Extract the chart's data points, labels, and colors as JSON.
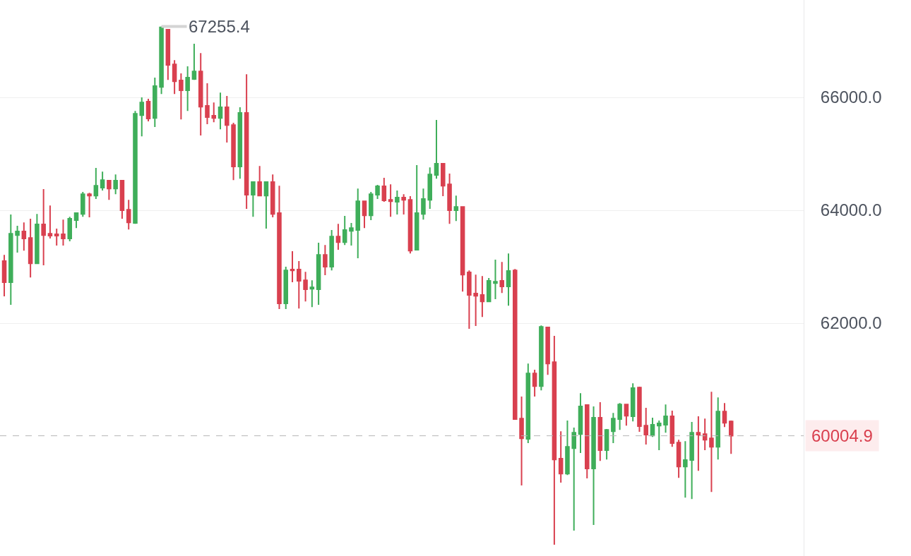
{
  "chart_data": {
    "type": "candlestick",
    "categories": [
      null,
      null,
      null,
      null,
      null,
      null,
      null,
      null,
      null,
      null,
      null,
      null,
      null,
      null,
      null,
      null,
      null,
      null,
      null,
      null,
      null,
      null,
      null,
      null,
      null,
      null,
      null,
      null,
      null,
      null,
      null,
      null,
      null,
      null,
      null,
      null,
      null,
      null,
      null,
      null,
      null,
      null,
      null,
      null,
      null,
      null,
      null,
      null,
      null,
      null,
      null,
      null,
      null,
      null,
      null,
      null,
      null,
      null,
      null,
      null,
      null,
      null,
      null,
      null,
      null,
      null,
      null,
      null,
      null,
      null,
      null,
      null,
      null,
      null,
      null,
      null,
      null,
      null,
      null,
      null,
      null,
      null,
      null,
      null,
      null,
      null,
      null,
      null,
      null,
      null,
      null,
      null,
      null,
      null,
      null,
      null,
      null,
      null,
      null,
      null,
      null,
      null,
      null,
      null,
      null,
      null,
      null,
      null,
      null,
      null,
      null,
      null
    ],
    "ohlc": [
      [
        63100,
        63210,
        62475,
        62725
      ],
      [
        62725,
        63925,
        62325,
        63585
      ],
      [
        63560,
        63725,
        63250,
        63625
      ],
      [
        63625,
        63785,
        63285,
        63500
      ],
      [
        63510,
        63850,
        62810,
        63060
      ],
      [
        63060,
        63935,
        63060,
        63750
      ],
      [
        63750,
        64375,
        63025,
        63560
      ],
      [
        63585,
        64085,
        63500,
        63550
      ],
      [
        63575,
        63675,
        63375,
        63550
      ],
      [
        63575,
        63835,
        63375,
        63500
      ],
      [
        63500,
        63885,
        63450,
        63850
      ],
      [
        63825,
        63960,
        63685,
        63950
      ],
      [
        63935,
        64325,
        63885,
        64285
      ],
      [
        64285,
        64310,
        63875,
        64260
      ],
      [
        64260,
        64750,
        64200,
        64435
      ],
      [
        64400,
        64685,
        64350,
        64535
      ],
      [
        64525,
        64535,
        64185,
        64385
      ],
      [
        64385,
        64635,
        64285,
        64525
      ],
      [
        64525,
        64535,
        63850,
        64000
      ],
      [
        64010,
        64185,
        63660,
        63785
      ],
      [
        63775,
        65760,
        63760,
        65710
      ],
      [
        65685,
        66000,
        65310,
        65910
      ],
      [
        65925,
        65975,
        65575,
        65625
      ],
      [
        65635,
        66350,
        65475,
        66200
      ],
      [
        66185,
        67255.4,
        66060,
        67240
      ],
      [
        67200,
        67210,
        66310,
        66575
      ],
      [
        66585,
        66660,
        66060,
        66285
      ],
      [
        66300,
        66425,
        65610,
        66125
      ],
      [
        66125,
        66550,
        65760,
        66350
      ],
      [
        66325,
        66950,
        66310,
        66460
      ],
      [
        66460,
        66785,
        65325,
        65835
      ],
      [
        65850,
        66250,
        65525,
        65650
      ],
      [
        65675,
        65910,
        65560,
        65635
      ],
      [
        65635,
        66085,
        65435,
        65825
      ],
      [
        65825,
        66025,
        65200,
        65510
      ],
      [
        65510,
        65550,
        64535,
        64775
      ],
      [
        64775,
        65825,
        64560,
        65725
      ],
      [
        65725,
        66410,
        64025,
        64275
      ],
      [
        64275,
        64500,
        63885,
        64500
      ],
      [
        64500,
        64785,
        64250,
        64260
      ],
      [
        64260,
        64500,
        63675,
        64500
      ],
      [
        64500,
        64635,
        63875,
        63935
      ],
      [
        63950,
        64435,
        62250,
        62350
      ],
      [
        62350,
        63000,
        62250,
        62935
      ],
      [
        62950,
        63275,
        62725,
        62935
      ],
      [
        62950,
        63100,
        62260,
        62750
      ],
      [
        62760,
        62910,
        62385,
        62600
      ],
      [
        62610,
        62760,
        62285,
        62635
      ],
      [
        62600,
        63425,
        62325,
        63210
      ],
      [
        63210,
        63385,
        62850,
        63000
      ],
      [
        63000,
        63650,
        62935,
        63535
      ],
      [
        63535,
        63760,
        63300,
        63435
      ],
      [
        63435,
        63900,
        63385,
        63650
      ],
      [
        63635,
        63775,
        63375,
        63685
      ],
      [
        63650,
        64385,
        63150,
        64160
      ],
      [
        64160,
        64160,
        63685,
        63910
      ],
      [
        63910,
        64325,
        63825,
        64285
      ],
      [
        64275,
        64450,
        64200,
        64425
      ],
      [
        64425,
        64575,
        64150,
        64175
      ],
      [
        64185,
        64460,
        63885,
        64160
      ],
      [
        64150,
        64350,
        63925,
        64225
      ],
      [
        64225,
        64285,
        63925,
        64185
      ],
      [
        64185,
        64250,
        63235,
        63285
      ],
      [
        63300,
        64800,
        63300,
        63950
      ],
      [
        63935,
        64385,
        63835,
        64200
      ],
      [
        64185,
        64760,
        64025,
        64635
      ],
      [
        64625,
        65600,
        64560,
        64825
      ],
      [
        64825,
        64835,
        64250,
        64435
      ],
      [
        64460,
        64650,
        63760,
        64000
      ],
      [
        64000,
        64260,
        63810,
        64060
      ],
      [
        64060,
        64060,
        62560,
        62860
      ],
      [
        62900,
        62935,
        61900,
        62500
      ],
      [
        62525,
        62860,
        61950,
        62485
      ],
      [
        62500,
        62835,
        62110,
        62385
      ],
      [
        62385,
        62800,
        62375,
        62750
      ],
      [
        62710,
        63125,
        62425,
        62735
      ],
      [
        62750,
        63085,
        62535,
        62650
      ],
      [
        62650,
        63235,
        62310,
        62925
      ],
      [
        62935,
        62960,
        60300,
        60300
      ],
      [
        60310,
        60700,
        59125,
        59960
      ],
      [
        59950,
        61285,
        59875,
        61110
      ],
      [
        61110,
        61175,
        60700,
        60885
      ],
      [
        60885,
        61960,
        60810,
        61935
      ],
      [
        61925,
        61935,
        61085,
        61285
      ],
      [
        61310,
        61775,
        58075,
        59585
      ],
      [
        59600,
        60085,
        59175,
        59335
      ],
      [
        59335,
        60275,
        59310,
        59810
      ],
      [
        59785,
        60150,
        58325,
        60060
      ],
      [
        60035,
        60760,
        59700,
        60525
      ],
      [
        60550,
        60560,
        59250,
        59425
      ],
      [
        59425,
        60525,
        58425,
        60325
      ],
      [
        60325,
        60600,
        59560,
        59750
      ],
      [
        59750,
        60125,
        59585,
        60110
      ],
      [
        60085,
        60410,
        59875,
        60310
      ],
      [
        60300,
        60585,
        60110,
        60560
      ],
      [
        60560,
        60560,
        60185,
        60360
      ],
      [
        60350,
        60935,
        60260,
        60850
      ],
      [
        60860,
        60875,
        60075,
        60175
      ],
      [
        60185,
        60500,
        59850,
        60025
      ],
      [
        60010,
        60325,
        59985,
        60200
      ],
      [
        60185,
        60275,
        59750,
        60225
      ],
      [
        60200,
        60560,
        60060,
        60350
      ],
      [
        60350,
        60450,
        59810,
        59875
      ],
      [
        59885,
        59935,
        59260,
        59460
      ],
      [
        59460,
        59910,
        58910,
        59575
      ],
      [
        59575,
        60250,
        58885,
        60060
      ],
      [
        60060,
        60350,
        59385,
        60025
      ],
      [
        60035,
        60310,
        59750,
        59935
      ],
      [
        59960,
        60785,
        59010,
        59810
      ],
      [
        59810,
        60685,
        59585,
        60435
      ],
      [
        60435,
        60585,
        60160,
        60235
      ],
      [
        60260,
        60275,
        59685,
        60004.9
      ]
    ],
    "colors": [
      "#d9404f",
      "#3fae5a",
      "#3fae5a",
      "#d9404f",
      "#d9404f",
      "#3fae5a",
      "#d9404f",
      "#d9404f",
      "#d9404f",
      "#d9404f",
      "#3fae5a",
      "#3fae5a",
      "#3fae5a",
      "#d9404f",
      "#3fae5a",
      "#3fae5a",
      "#d9404f",
      "#3fae5a",
      "#d9404f",
      "#d9404f",
      "#3fae5a",
      "#3fae5a",
      "#d9404f",
      "#3fae5a",
      "#3fae5a",
      "#d9404f",
      "#d9404f",
      "#d9404f",
      "#3fae5a",
      "#3fae5a",
      "#d9404f",
      "#d9404f",
      "#d9404f",
      "#3fae5a",
      "#d9404f",
      "#d9404f",
      "#3fae5a",
      "#d9404f",
      "#3fae5a",
      "#d9404f",
      "#3fae5a",
      "#d9404f",
      "#d9404f",
      "#3fae5a",
      "#d9404f",
      "#d9404f",
      "#d9404f",
      "#3fae5a",
      "#3fae5a",
      "#d9404f",
      "#3fae5a",
      "#d9404f",
      "#3fae5a",
      "#3fae5a",
      "#3fae5a",
      "#d9404f",
      "#3fae5a",
      "#3fae5a",
      "#d9404f",
      "#d9404f",
      "#3fae5a",
      "#d9404f",
      "#d9404f",
      "#3fae5a",
      "#3fae5a",
      "#3fae5a",
      "#3fae5a",
      "#d9404f",
      "#d9404f",
      "#3fae5a",
      "#d9404f",
      "#d9404f",
      "#d9404f",
      "#d9404f",
      "#3fae5a",
      "#3fae5a",
      "#d9404f",
      "#3fae5a",
      "#d9404f",
      "#d9404f",
      "#3fae5a",
      "#d9404f",
      "#3fae5a",
      "#d9404f",
      "#d9404f",
      "#d9404f",
      "#3fae5a",
      "#3fae5a",
      "#3fae5a",
      "#d9404f",
      "#3fae5a",
      "#d9404f",
      "#3fae5a",
      "#3fae5a",
      "#3fae5a",
      "#d9404f",
      "#3fae5a",
      "#d9404f",
      "#d9404f",
      "#3fae5a",
      "#3fae5a",
      "#3fae5a",
      "#d9404f",
      "#d9404f",
      "#3fae5a",
      "#3fae5a",
      "#d9404f",
      "#d9404f",
      "#d9404f",
      "#3fae5a",
      "#d9404f",
      "#d9404f"
    ],
    "ylim": [
      57875,
      67725
    ],
    "yticks": [
      {
        "value": 62000,
        "label": "62000.0"
      },
      {
        "value": 64000,
        "label": "64000.0"
      },
      {
        "value": 66000,
        "label": "66000.0"
      }
    ],
    "grid": "y",
    "tick_labels": "y",
    "annotations": [
      "67255.4"
    ],
    "ref_lines": [
      {
        "axis": "y",
        "value": 60004.9,
        "label": "60004.9",
        "color": "#b5b5b5",
        "line_style": "dashed"
      }
    ]
  }
}
